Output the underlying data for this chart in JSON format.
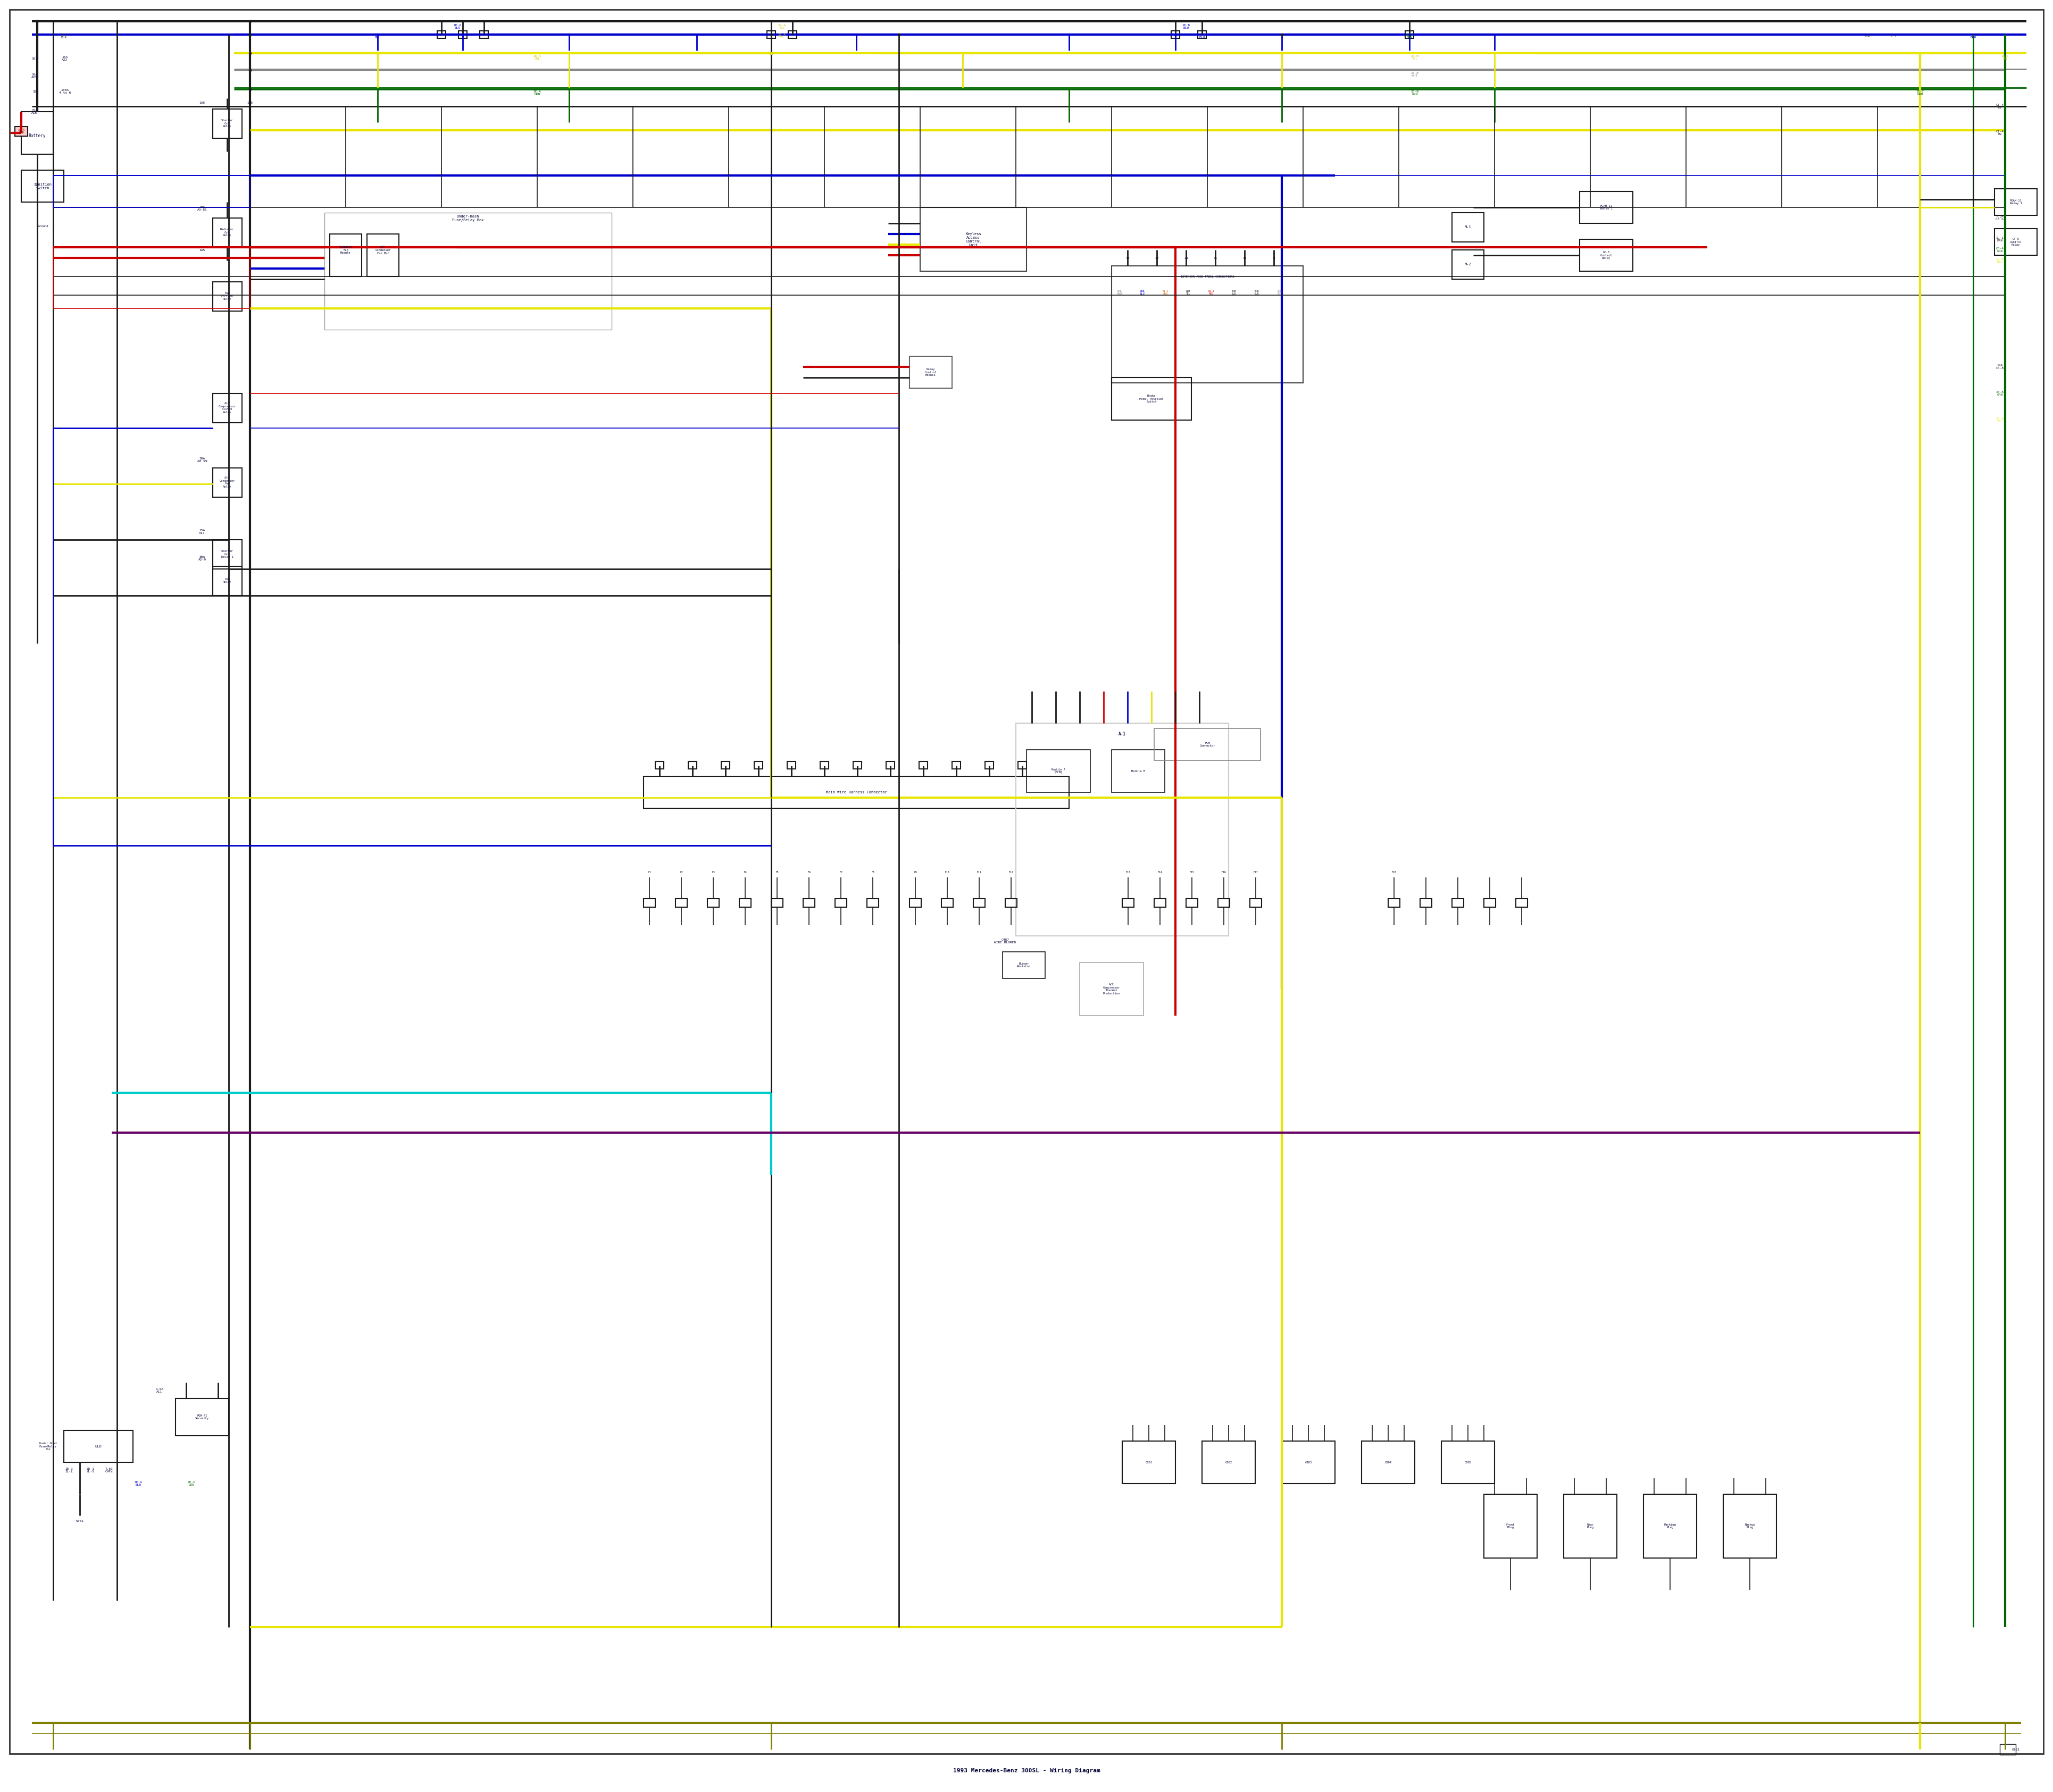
{
  "bg_color": "#ffffff",
  "wire_colors": {
    "black": "#1a1a1a",
    "red": "#cc0000",
    "blue": "#0000cc",
    "yellow": "#e6e600",
    "green": "#006600",
    "cyan": "#00cccc",
    "purple": "#660066",
    "gray": "#888888",
    "dark_yellow": "#808000",
    "orange": "#cc6600",
    "light_blue": "#6699ff"
  },
  "title": "1993 Mercedes-Benz 300SL Wiring Diagram",
  "label_fontsize": 5.5,
  "component_fontsize": 5.0
}
